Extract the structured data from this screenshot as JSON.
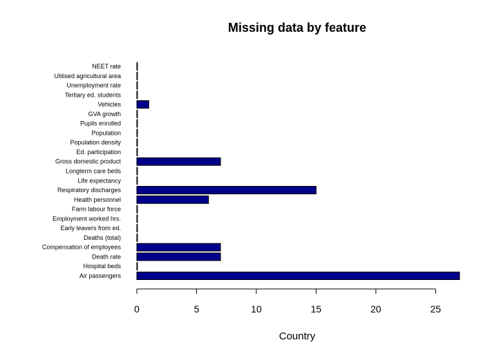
{
  "chart_data": {
    "type": "bar",
    "orientation": "horizontal",
    "title": "Missing data by feature",
    "xlabel": "Country",
    "ylabel": "",
    "categories": [
      "Air passengers",
      "Hospital beds",
      "Death rate",
      "Compensation of employees",
      "Deaths (total)",
      "Early leavers from ed.",
      "Employment worked hrs.",
      "Farm labour force",
      "Health personnel",
      "Respiratory discharges",
      "Life expectancy",
      "Longterm care beds",
      "Gross domestic product",
      "Ed. participation",
      "Population density",
      "Population",
      "Pupils enrolled",
      "GVA growth",
      "Vehicles",
      "Tertiary ed. students",
      "Unemployment rate",
      "Utilised agricultural area",
      "NEET rate"
    ],
    "values": [
      27,
      0,
      7,
      7,
      0,
      0,
      0,
      0,
      6,
      15,
      0,
      0,
      7,
      0,
      0,
      0,
      0,
      0,
      1,
      0,
      0,
      0,
      0
    ],
    "xlim": [
      0,
      27
    ],
    "xticks": [
      0,
      5,
      10,
      15,
      20,
      25
    ],
    "xtick_labels": [
      "0",
      "5",
      "10",
      "15",
      "20",
      "25"
    ],
    "bar_color": "#00008B",
    "bar_edge_color": "#000000",
    "grid": false,
    "legend": "none"
  }
}
